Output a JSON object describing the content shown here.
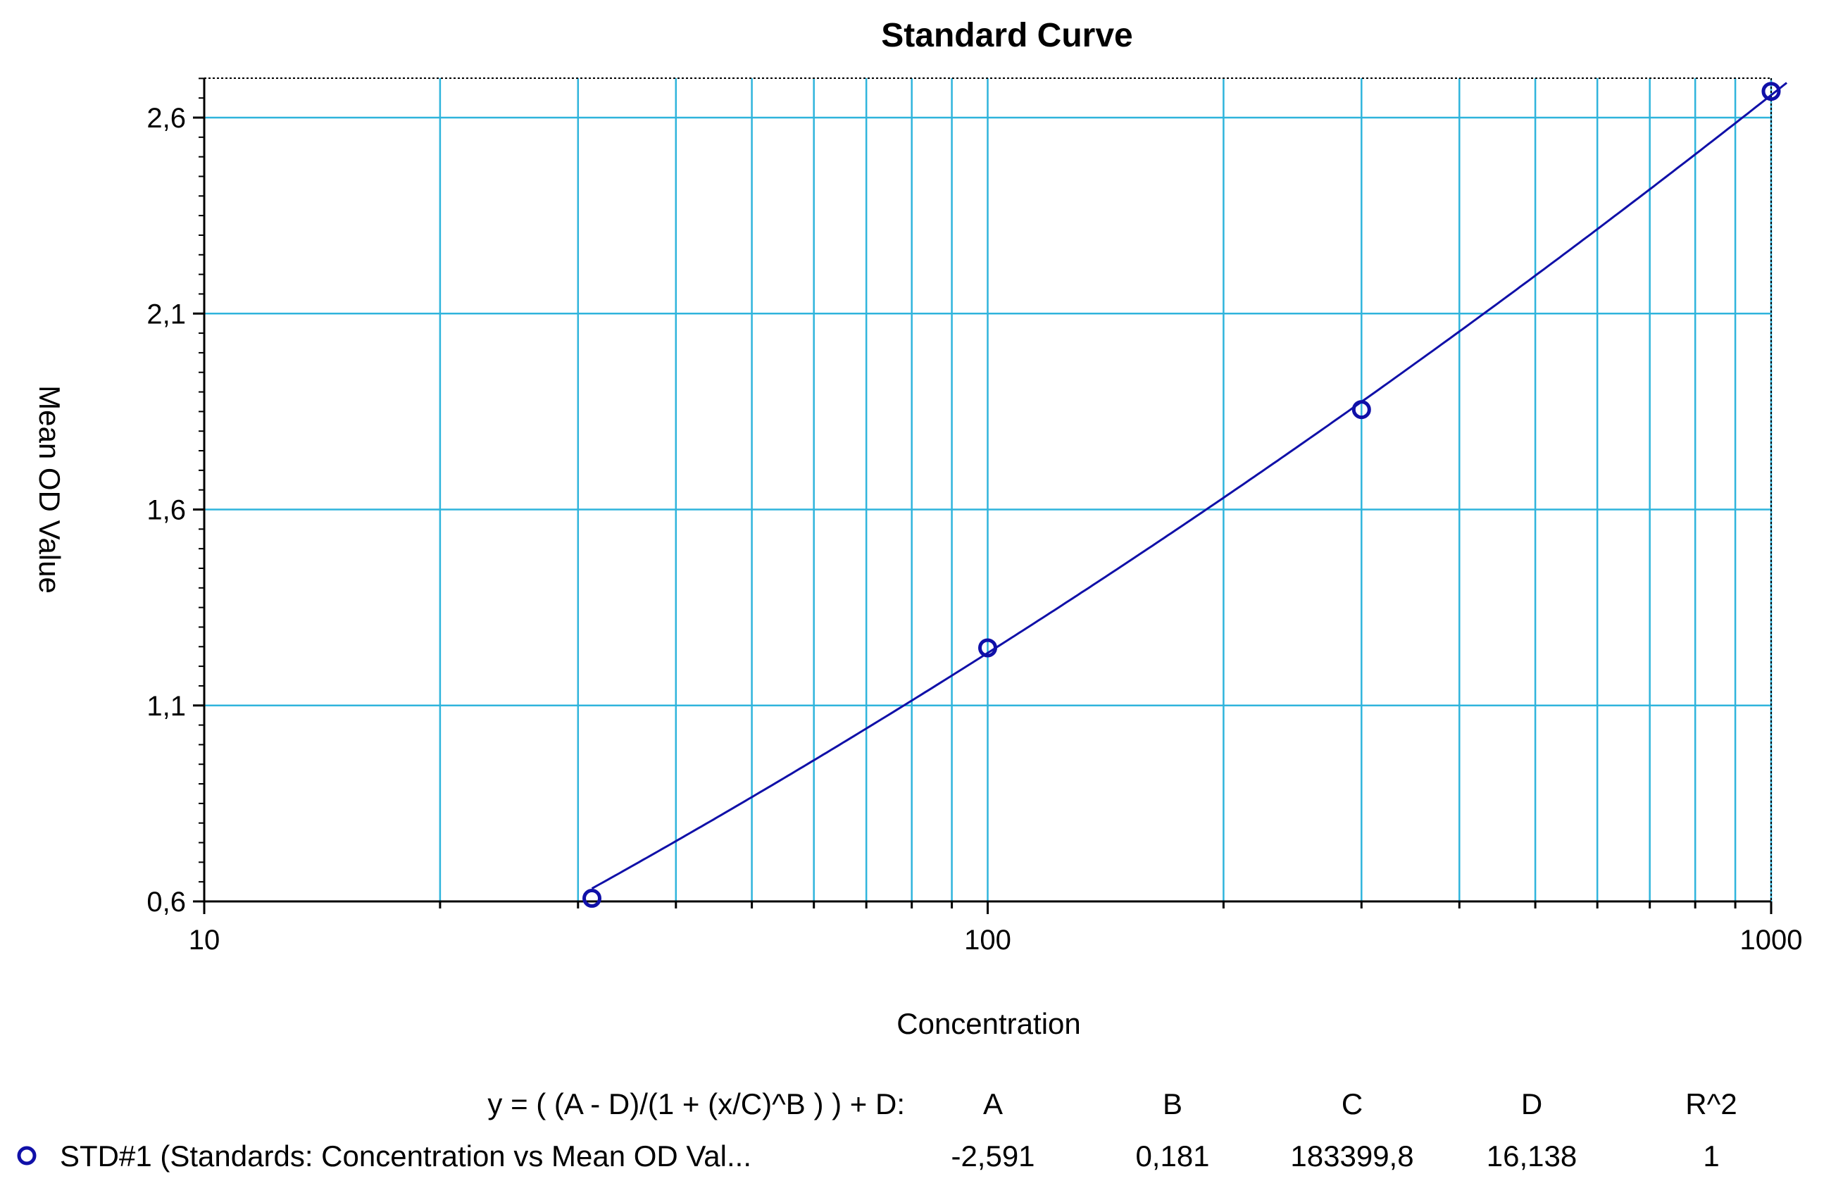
{
  "chart_data": {
    "type": "scatter",
    "title": "Standard Curve",
    "xlabel": "Concentration",
    "ylabel": "Mean OD Value",
    "x_scale": "log",
    "xlim": [
      10,
      1000
    ],
    "ylim": [
      0.6,
      2.7
    ],
    "x_ticks": [
      "10",
      "100",
      "1000"
    ],
    "y_ticks": [
      "0,6",
      "1,1",
      "1,6",
      "2,1",
      "2,6"
    ],
    "grid": true,
    "colors": {
      "series": "#1010a8",
      "grid": "#2fb4dc",
      "axis": "#000000"
    },
    "series": [
      {
        "name": "STD#1 (Standards: Concentration vs Mean OD Val...",
        "points": [
          {
            "x": 31.25,
            "y": 0.608
          },
          {
            "x": 100,
            "y": 1.247
          },
          {
            "x": 300,
            "y": 1.855
          },
          {
            "x": 1000,
            "y": 2.667
          }
        ]
      }
    ],
    "fit": {
      "equation": "y = ( (A - D)/(1 + (x/C)^B ) ) + D:",
      "params": {
        "A": -2.591,
        "B": 0.181,
        "C": 183399.8,
        "D": 16.138
      }
    },
    "legend": {
      "equation_label": "y = ( (A - D)/(1 + (x/C)^B ) ) + D:",
      "headers": [
        "A",
        "B",
        "C",
        "D",
        "R^2"
      ],
      "row_label": "STD#1 (Standards: Concentration vs Mean OD Val...",
      "values": [
        "-2,591",
        "0,181",
        "183399,8",
        "16,138",
        "1"
      ],
      "placement": "bottom"
    }
  }
}
